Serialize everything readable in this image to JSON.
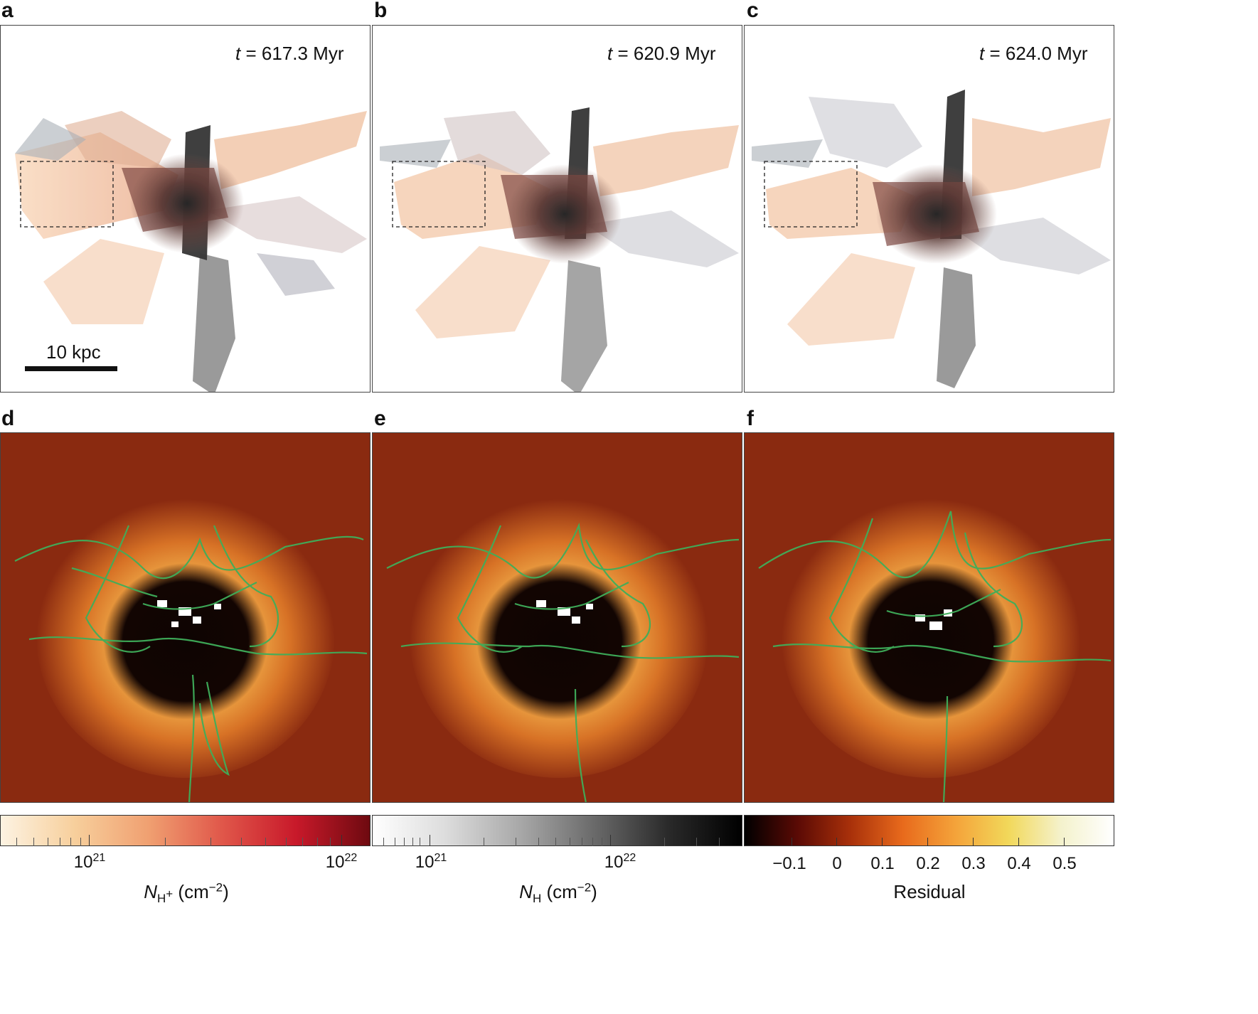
{
  "top_panels": [
    {
      "label": "a",
      "time_prefix": "t",
      "time_value": "= 617.3 Myr"
    },
    {
      "label": "b",
      "time_prefix": "t",
      "time_value": "= 620.9 Myr"
    },
    {
      "label": "c",
      "time_prefix": "t",
      "time_value": "= 624.0 Myr"
    }
  ],
  "bottom_panels": [
    {
      "label": "d"
    },
    {
      "label": "e"
    },
    {
      "label": "f"
    }
  ],
  "scale_bar": {
    "text": "10 kpc"
  },
  "colorbars": [
    {
      "name": "ionized-column",
      "tick_labels": [
        {
          "base": "10",
          "exp": "21"
        },
        {
          "base": "10",
          "exp": "22"
        }
      ],
      "label_symbol": "N",
      "label_sub": "H",
      "label_sub_sup": "+",
      "label_unit": " (cm",
      "label_unit_exp": "−2",
      "label_close": ")",
      "colors": [
        "#fdf3e2",
        "#f7cf9c",
        "#f0a071",
        "#e0574a",
        "#c8192a",
        "#6e0a10"
      ]
    },
    {
      "name": "neutral-column",
      "tick_labels": [
        {
          "base": "10",
          "exp": "21"
        },
        {
          "base": "10",
          "exp": "22"
        }
      ],
      "label_symbol": "N",
      "label_sub": "H",
      "label_unit": " (cm",
      "label_unit_exp": "−2",
      "label_close": ")",
      "colors": [
        "#ffffff",
        "#dcdcdc",
        "#a8a8a8",
        "#6a6a6a",
        "#2a2a2a",
        "#000000"
      ]
    },
    {
      "name": "residual",
      "tick_labels": [
        "−0.1",
        "0",
        "0.1",
        "0.2",
        "0.3",
        "0.4",
        "0.5"
      ],
      "label": "Residual",
      "colors": [
        "#000000",
        "#5a0a05",
        "#a8300a",
        "#e86a1c",
        "#f4a33a",
        "#f2d85a",
        "#f4f2cc",
        "#ffffff"
      ]
    }
  ],
  "colors": {
    "contour": "#3fae5a",
    "residual_background": "#8a2a10"
  }
}
